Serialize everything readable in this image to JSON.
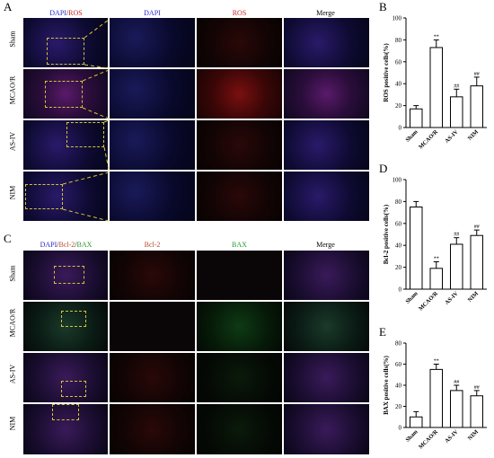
{
  "panels": {
    "A": "A",
    "B": "B",
    "C": "C",
    "D": "D",
    "E": "E"
  },
  "panelA": {
    "headers": {
      "dapi_ros_1": "DAPI",
      "dapi_ros_sep": "/",
      "dapi_ros_2": "ROS",
      "dapi": "DAPI",
      "ros": "ROS",
      "merge": "Merge"
    },
    "rows": [
      "Sham",
      "MCAO/R",
      "AS-IV",
      "NIM"
    ]
  },
  "panelC": {
    "headers": {
      "c1": "DAPI",
      "s1": "/",
      "c2": "Bcl-2",
      "s2": "/",
      "c3": "BAX",
      "bcl2": "Bcl-2",
      "bax": "BAX",
      "merge": "Merge"
    },
    "rows": [
      "Sham",
      "MCAO/R",
      "AS-IV",
      "NIM"
    ]
  },
  "colors": {
    "dapi": "#2a2acc",
    "ros": "#cc2222",
    "bcl2": "#b84a2a",
    "bax": "#2a9a2a",
    "dash": "#d8c23a"
  },
  "chart_data": [
    {
      "type": "bar",
      "panel": "B",
      "categories": [
        "Sham",
        "MCAO/R",
        "AS-IV",
        "NIM"
      ],
      "values": [
        17,
        73,
        28,
        38
      ],
      "errors": [
        3,
        7,
        7,
        8
      ],
      "annotations": [
        "",
        "**",
        "##",
        "##"
      ],
      "ylabel": "ROS positive cells(%)",
      "ylim": [
        0,
        100
      ],
      "yticks": [
        0,
        20,
        40,
        60,
        80,
        100
      ]
    },
    {
      "type": "bar",
      "panel": "D",
      "categories": [
        "Sham",
        "MCAO/R",
        "AS-IV",
        "NIM"
      ],
      "values": [
        75,
        19,
        41,
        49
      ],
      "errors": [
        5,
        6,
        6,
        5
      ],
      "annotations": [
        "",
        "**",
        "##",
        "##"
      ],
      "ylabel": "Bcl-2 positive cells(%)",
      "ylim": [
        0,
        100
      ],
      "yticks": [
        0,
        20,
        40,
        60,
        80,
        100
      ]
    },
    {
      "type": "bar",
      "panel": "E",
      "categories": [
        "Sham",
        "MCAO/R",
        "AS-IV",
        "NIM"
      ],
      "values": [
        10,
        55,
        35,
        30
      ],
      "errors": [
        5,
        5,
        5,
        5
      ],
      "annotations": [
        "",
        "**",
        "##",
        "##"
      ],
      "ylabel": "BAX positive cells(%)",
      "ylim": [
        0,
        80
      ],
      "yticks": [
        0,
        20,
        40,
        60,
        80
      ]
    }
  ]
}
